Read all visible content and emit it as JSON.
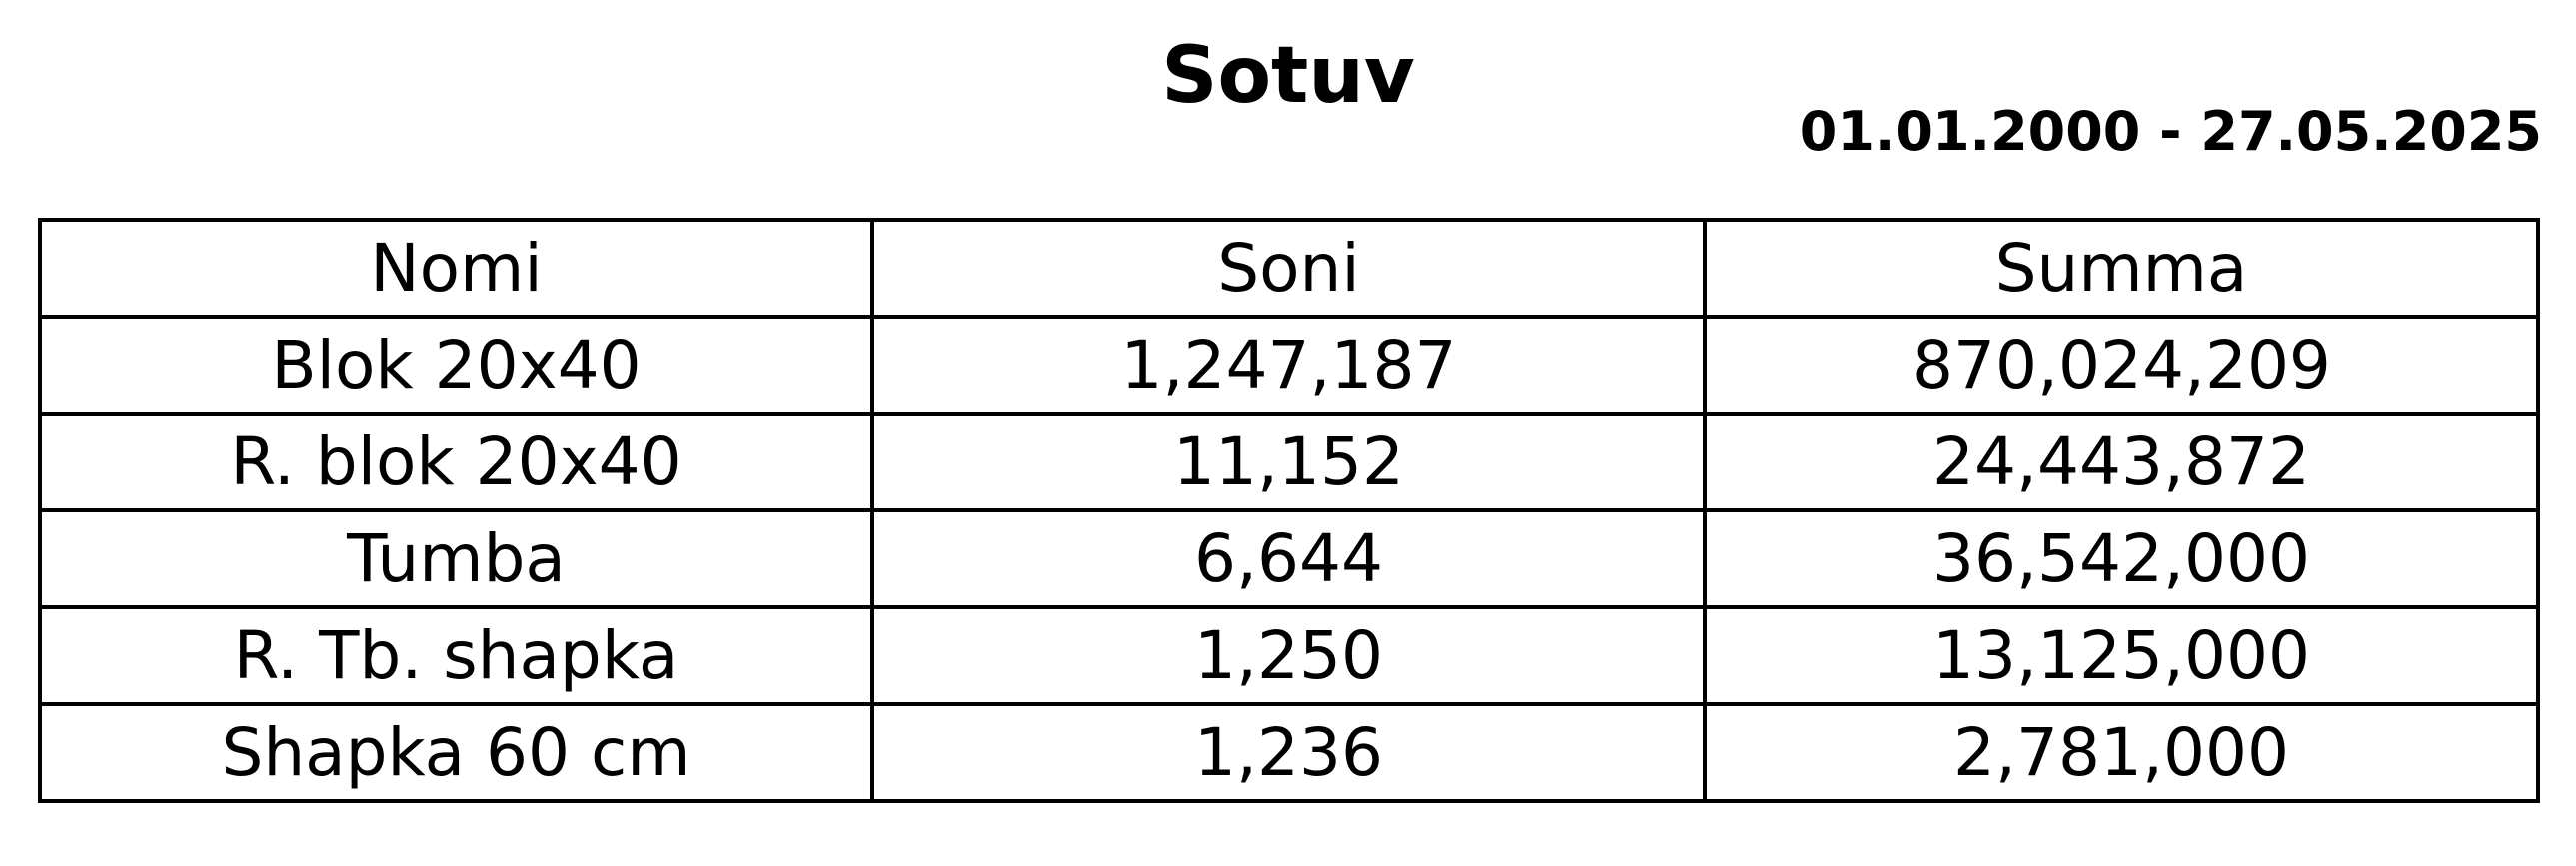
{
  "report": {
    "title": "Sotuv",
    "date_range": "01.01.2000 - 27.05.2025"
  },
  "table": {
    "headers": [
      "Nomi",
      "Soni",
      "Summa"
    ],
    "rows": [
      [
        "Blok 20x40",
        "1,247,187",
        "870,024,209"
      ],
      [
        "R. blok 20x40",
        "11,152",
        "24,443,872"
      ],
      [
        "Tumba",
        "6,644",
        "36,542,000"
      ],
      [
        "R. Tb. shapka",
        "1,250",
        "13,125,000"
      ],
      [
        "Shapka 60 cm",
        "1,236",
        "2,781,000"
      ]
    ]
  }
}
